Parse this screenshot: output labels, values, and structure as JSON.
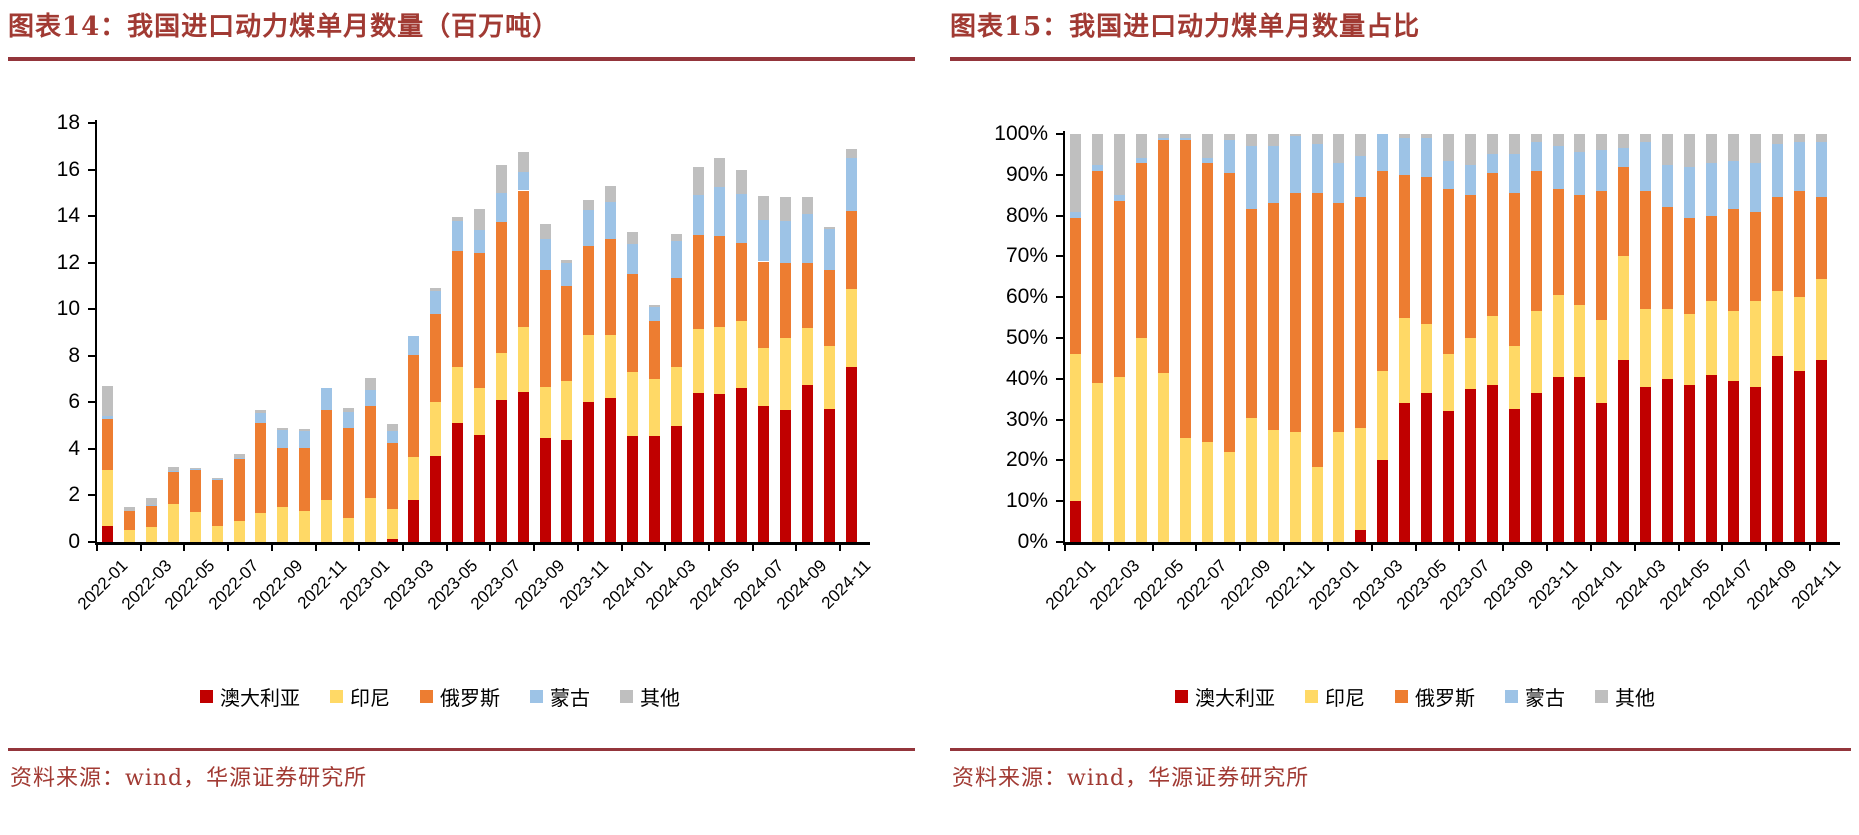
{
  "accent_colors": {
    "title_red": "#A13A33",
    "rule_red": "#93353B",
    "axis_black": "#000000"
  },
  "panels": [
    {
      "title": "图表14：我国进口动力煤单月数量（百万吨）",
      "source": "资料来源：wind，华源证券研究所"
    },
    {
      "title": "图表15：我国进口动力煤单月数量占比",
      "source": "资料来源：wind，华源证券研究所"
    }
  ],
  "legend": [
    "澳大利亚",
    "印尼",
    "俄罗斯",
    "蒙古",
    "其他"
  ],
  "series_colors": {
    "澳大利亚": "#C00000",
    "印尼": "#FFD966",
    "俄罗斯": "#ED7D31",
    "蒙古": "#9DC3E6",
    "其他": "#BFBFBF"
  },
  "chart_data": [
    {
      "type": "bar",
      "stacked": true,
      "title": "图表14：我国进口动力煤单月数量（百万吨）",
      "ylabel": "百万吨",
      "xlabel": "",
      "grid": false,
      "legend_position": "bottom",
      "ylim": [
        0,
        18
      ],
      "ytick_labels": [
        "0",
        "2",
        "4",
        "6",
        "8",
        "10",
        "12",
        "14",
        "16",
        "18"
      ],
      "xtick_every": 2,
      "xtick_labels": [
        "2022-01",
        "2022-03",
        "2022-05",
        "2022-07",
        "2022-09",
        "2022-11",
        "2023-01",
        "2023-03",
        "2023-05",
        "2023-07",
        "2023-09",
        "2023-11",
        "2024-01",
        "2024-03",
        "2024-05",
        "2024-07",
        "2024-09",
        "2024-11"
      ],
      "categories": [
        "2022-01",
        "2022-02",
        "2022-03",
        "2022-04",
        "2022-05",
        "2022-06",
        "2022-07",
        "2022-08",
        "2022-09",
        "2022-10",
        "2022-11",
        "2022-12",
        "2023-01",
        "2023-02",
        "2023-03",
        "2023-04",
        "2023-05",
        "2023-06",
        "2023-07",
        "2023-08",
        "2023-09",
        "2023-10",
        "2023-11",
        "2023-12",
        "2024-01",
        "2024-02",
        "2024-03",
        "2024-04",
        "2024-05",
        "2024-06",
        "2024-07",
        "2024-08",
        "2024-09",
        "2024-10",
        "2024-11"
      ],
      "series": [
        {
          "name": "澳大利亚",
          "color": "#C00000",
          "values": [
            0.7,
            0,
            0,
            0,
            0,
            0,
            0,
            0,
            0,
            0,
            0,
            0,
            0,
            0.15,
            1.8,
            3.7,
            5.1,
            4.6,
            6.1,
            6.45,
            4.45,
            4.4,
            6.0,
            6.2,
            4.55,
            4.55,
            5.0,
            6.4,
            6.35,
            6.6,
            5.85,
            5.65,
            6.75,
            5.7,
            7.5
          ]
        },
        {
          "name": "印尼",
          "color": "#FFD966",
          "values": [
            2.4,
            0.5,
            0.65,
            1.65,
            1.3,
            0.7,
            0.9,
            1.25,
            1.5,
            1.35,
            1.8,
            1.05,
            1.9,
            1.25,
            1.85,
            2.3,
            2.4,
            2.0,
            2.0,
            2.8,
            2.2,
            2.5,
            2.9,
            2.7,
            2.75,
            2.45,
            2.5,
            2.75,
            2.9,
            2.9,
            2.5,
            3.1,
            2.45,
            2.7,
            3.35
          ]
        },
        {
          "name": "俄罗斯",
          "color": "#ED7D31",
          "values": [
            2.2,
            0.85,
            0.9,
            1.4,
            1.8,
            2.0,
            2.65,
            3.85,
            2.55,
            2.7,
            3.85,
            3.85,
            3.95,
            2.85,
            4.4,
            3.8,
            5.0,
            5.8,
            5.65,
            5.85,
            5.05,
            4.1,
            3.8,
            4.1,
            4.2,
            2.5,
            3.85,
            4.05,
            3.9,
            3.35,
            3.7,
            3.25,
            2.8,
            3.3,
            3.35
          ]
        },
        {
          "name": "蒙古",
          "color": "#9DC3E6",
          "values": [
            0.1,
            0,
            0.05,
            0.02,
            0.02,
            0.02,
            0.05,
            0.45,
            0.75,
            0.7,
            0.95,
            0.7,
            0.7,
            0.5,
            0.8,
            1.0,
            1.3,
            1.0,
            1.25,
            0.8,
            1.3,
            1.0,
            1.55,
            1.6,
            1.3,
            0.6,
            1.6,
            1.7,
            2.1,
            2.1,
            1.8,
            1.8,
            2.1,
            1.75,
            2.3
          ]
        },
        {
          "name": "其他",
          "color": "#BFBFBF",
          "values": [
            1.3,
            0.15,
            0.3,
            0.15,
            0.05,
            0.05,
            0.2,
            0.1,
            0.1,
            0.1,
            0,
            0.15,
            0.5,
            0.3,
            0,
            0.1,
            0.15,
            0.9,
            1.2,
            0.85,
            0.65,
            0.1,
            0.45,
            0.7,
            0.5,
            0.1,
            0.3,
            1.2,
            1.25,
            1.05,
            1.0,
            1.0,
            0.7,
            0.1,
            0.4
          ]
        }
      ]
    },
    {
      "type": "bar",
      "stacked": true,
      "percent": true,
      "title": "图表15：我国进口动力煤单月数量占比",
      "ylabel": "%",
      "xlabel": "",
      "grid": false,
      "legend_position": "bottom",
      "ylim": [
        0,
        100
      ],
      "ytick_labels": [
        "0%",
        "10%",
        "20%",
        "30%",
        "40%",
        "50%",
        "60%",
        "70%",
        "80%",
        "90%",
        "100%"
      ],
      "xtick_every": 2,
      "xtick_labels": [
        "2022-01",
        "2022-03",
        "2022-05",
        "2022-07",
        "2022-09",
        "2022-11",
        "2023-01",
        "2023-03",
        "2023-05",
        "2023-07",
        "2023-09",
        "2023-11",
        "2024-01",
        "2024-03",
        "2024-05",
        "2024-07",
        "2024-09",
        "2024-11"
      ],
      "categories": [
        "2022-01",
        "2022-02",
        "2022-03",
        "2022-04",
        "2022-05",
        "2022-06",
        "2022-07",
        "2022-08",
        "2022-09",
        "2022-10",
        "2022-11",
        "2022-12",
        "2023-01",
        "2023-02",
        "2023-03",
        "2023-04",
        "2023-05",
        "2023-06",
        "2023-07",
        "2023-08",
        "2023-09",
        "2023-10",
        "2023-11",
        "2023-12",
        "2024-01",
        "2024-02",
        "2024-03",
        "2024-04",
        "2024-05",
        "2024-06",
        "2024-07",
        "2024-08",
        "2024-09",
        "2024-10",
        "2024-11"
      ],
      "series": [
        {
          "name": "澳大利亚",
          "color": "#C00000",
          "values": [
            10,
            0,
            0,
            0,
            0,
            0,
            0,
            0,
            0,
            0,
            0,
            0,
            0,
            3,
            20,
            34,
            36.5,
            32,
            37.5,
            38.5,
            32.5,
            36.5,
            40.5,
            40.5,
            34,
            44.5,
            38,
            40,
            38.5,
            41,
            39.5,
            38,
            45.5,
            42,
            44.5
          ]
        },
        {
          "name": "印尼",
          "color": "#FFD966",
          "values": [
            36,
            39,
            40.5,
            50,
            41.5,
            25.5,
            24.5,
            22,
            30.5,
            27.5,
            27,
            18.5,
            27,
            25,
            22,
            21,
            17,
            14,
            12.5,
            17,
            15.5,
            20,
            20,
            17.5,
            20.5,
            25.5,
            19,
            17,
            17.5,
            18,
            17,
            21,
            16,
            18,
            20
          ]
        },
        {
          "name": "俄罗斯",
          "color": "#ED7D31",
          "values": [
            33.5,
            52,
            43,
            43,
            57,
            73,
            68.5,
            68.5,
            51,
            55.5,
            58.5,
            67,
            56,
            56.5,
            49,
            35,
            36,
            40.5,
            35,
            35,
            37.5,
            34.5,
            26,
            27,
            31.5,
            22,
            29,
            25,
            23.5,
            21,
            25,
            22,
            23,
            26,
            20
          ]
        },
        {
          "name": "蒙古",
          "color": "#9DC3E6",
          "values": [
            1.5,
            1.5,
            1.5,
            1,
            0.5,
            0.5,
            1,
            8,
            15.5,
            14,
            14,
            12,
            10,
            10,
            9,
            9,
            9.5,
            7,
            7.5,
            4.5,
            9.5,
            7,
            10.5,
            10.5,
            10,
            4.5,
            12,
            10.5,
            12.5,
            13,
            12,
            12,
            13,
            12,
            13.5
          ]
        },
        {
          "name": "其他",
          "color": "#BFBFBF",
          "values": [
            19,
            7.5,
            15,
            6,
            1,
            1,
            6,
            1.5,
            3,
            3,
            0.5,
            2.5,
            7,
            5.5,
            0,
            1,
            1,
            6.5,
            7.5,
            5,
            5,
            2,
            3,
            4.5,
            4,
            3.5,
            2,
            7.5,
            8,
            7,
            6.5,
            7,
            2.5,
            2,
            2
          ]
        }
      ]
    }
  ]
}
